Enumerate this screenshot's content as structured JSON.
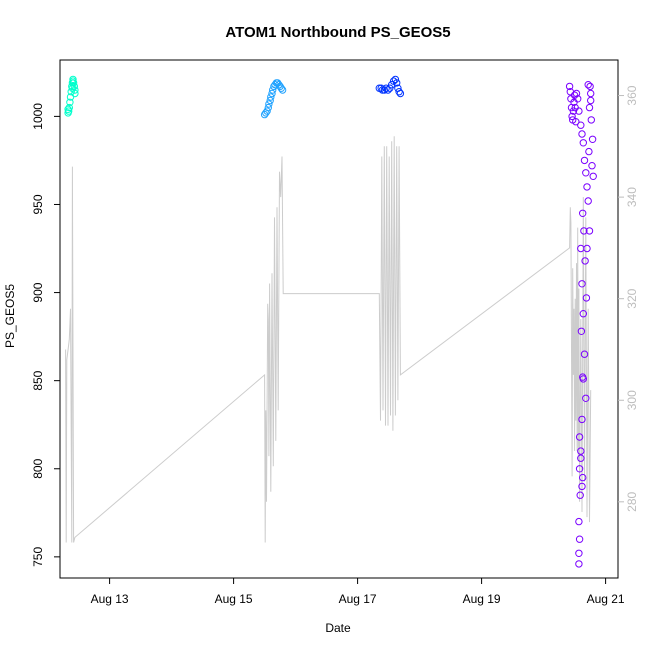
{
  "chart_data": {
    "type": "scatter",
    "title": "ATOM1 Northbound PS_GEOS5",
    "xlabel": "Date",
    "ylabel": "PS_GEOS5",
    "xlim": [
      12.2,
      21.2
    ],
    "ylim": [
      738,
      1032
    ],
    "y2lim": [
      265,
      367
    ],
    "x_ticks": [
      {
        "v": 13,
        "label": "Aug 13"
      },
      {
        "v": 15,
        "label": "Aug 15"
      },
      {
        "v": 17,
        "label": "Aug 17"
      },
      {
        "v": 19,
        "label": "Aug 19"
      },
      {
        "v": 21,
        "label": "Aug 21"
      }
    ],
    "y_ticks": [
      750,
      800,
      850,
      900,
      950,
      1000
    ],
    "y2_ticks": [
      280,
      300,
      320,
      340,
      360
    ],
    "grid": false,
    "colors": {
      "series1": "#00ffcc",
      "series2": "#1fa2ff",
      "series3": "#0033ff",
      "series4": "#7a00ff",
      "line": "#cccccc",
      "right_axis": "#bdbdbd"
    },
    "series": [
      {
        "color": "#00ffcc",
        "points": [
          [
            12.33,
            1002
          ],
          [
            12.33,
            1004
          ],
          [
            12.34,
            1003
          ],
          [
            12.35,
            1005
          ],
          [
            12.36,
            1008
          ],
          [
            12.37,
            1011
          ],
          [
            12.38,
            1014
          ],
          [
            12.39,
            1017
          ],
          [
            12.4,
            1019
          ],
          [
            12.41,
            1020
          ],
          [
            12.42,
            1019
          ],
          [
            12.43,
            1017
          ],
          [
            12.44,
            1015
          ],
          [
            12.44,
            1013
          ],
          [
            12.4,
            1016
          ],
          [
            12.41,
            1021
          ]
        ]
      },
      {
        "color": "#1fa2ff",
        "points": [
          [
            15.5,
            1001
          ],
          [
            15.52,
            1002
          ],
          [
            15.54,
            1003
          ],
          [
            15.56,
            1005
          ],
          [
            15.57,
            1007
          ],
          [
            15.59,
            1009
          ],
          [
            15.6,
            1011
          ],
          [
            15.62,
            1013
          ],
          [
            15.63,
            1015
          ],
          [
            15.65,
            1017
          ],
          [
            15.67,
            1018
          ],
          [
            15.69,
            1019
          ],
          [
            15.71,
            1019
          ],
          [
            15.73,
            1018
          ],
          [
            15.75,
            1017
          ],
          [
            15.77,
            1016
          ],
          [
            15.79,
            1015
          ]
        ]
      },
      {
        "color": "#0033ff",
        "points": [
          [
            17.35,
            1016
          ],
          [
            17.38,
            1016
          ],
          [
            17.4,
            1015
          ],
          [
            17.43,
            1015
          ],
          [
            17.46,
            1016
          ],
          [
            17.49,
            1015
          ],
          [
            17.52,
            1016
          ],
          [
            17.55,
            1018
          ],
          [
            17.58,
            1020
          ],
          [
            17.61,
            1021
          ],
          [
            17.63,
            1019
          ],
          [
            17.65,
            1016
          ],
          [
            17.67,
            1014
          ],
          [
            17.69,
            1013
          ]
        ]
      },
      {
        "color": "#7a00ff",
        "points": [
          [
            20.42,
            1017
          ],
          [
            20.43,
            1014
          ],
          [
            20.44,
            1010
          ],
          [
            20.45,
            1005
          ],
          [
            20.46,
            1000
          ],
          [
            20.47,
            998
          ],
          [
            20.48,
            1003
          ],
          [
            20.49,
            1008
          ],
          [
            20.5,
            1012
          ],
          [
            20.51,
            1005
          ],
          [
            20.52,
            997
          ],
          [
            20.53,
            1013
          ],
          [
            20.55,
            1010
          ],
          [
            20.57,
            1003
          ],
          [
            20.6,
            995
          ],
          [
            20.62,
            990
          ],
          [
            20.64,
            985
          ],
          [
            20.66,
            975
          ],
          [
            20.68,
            968
          ],
          [
            20.7,
            960
          ],
          [
            20.72,
            952
          ],
          [
            20.63,
            945
          ],
          [
            20.65,
            935
          ],
          [
            20.6,
            925
          ],
          [
            20.67,
            918
          ],
          [
            20.62,
            905
          ],
          [
            20.69,
            897
          ],
          [
            20.64,
            888
          ],
          [
            20.61,
            878
          ],
          [
            20.66,
            865
          ],
          [
            20.63,
            852
          ],
          [
            20.68,
            840
          ],
          [
            20.62,
            828
          ],
          [
            20.58,
            818
          ],
          [
            20.6,
            806
          ],
          [
            20.63,
            795
          ],
          [
            20.59,
            785
          ],
          [
            20.62,
            790
          ],
          [
            20.57,
            770
          ],
          [
            20.58,
            760
          ],
          [
            20.57,
            752
          ],
          [
            20.57,
            746
          ],
          [
            20.58,
            800
          ],
          [
            20.6,
            810
          ],
          [
            20.64,
            851
          ],
          [
            20.7,
            925
          ],
          [
            20.75,
            1017
          ],
          [
            20.76,
            1013
          ],
          [
            20.74,
            1005
          ],
          [
            20.77,
            998
          ],
          [
            20.79,
            987
          ],
          [
            20.78,
            972
          ],
          [
            20.8,
            966
          ],
          [
            20.72,
            1018
          ],
          [
            20.76,
            1009
          ],
          [
            20.73,
            980
          ],
          [
            20.74,
            935
          ]
        ]
      }
    ],
    "line_series": {
      "axis": "right",
      "color": "#cccccc",
      "points": [
        [
          12.29,
          310
        ],
        [
          12.3,
          272
        ],
        [
          12.31,
          308
        ],
        [
          12.33,
          310
        ],
        [
          12.35,
          312
        ],
        [
          12.37,
          318
        ],
        [
          12.39,
          272
        ],
        [
          12.4,
          346
        ],
        [
          12.42,
          272
        ],
        [
          12.44,
          273
        ],
        [
          15.5,
          305
        ],
        [
          15.51,
          272
        ],
        [
          15.52,
          298
        ],
        [
          15.53,
          280
        ],
        [
          15.55,
          319
        ],
        [
          15.56,
          316
        ],
        [
          15.57,
          289
        ],
        [
          15.58,
          323
        ],
        [
          15.6,
          282
        ],
        [
          15.62,
          325
        ],
        [
          15.64,
          287
        ],
        [
          15.66,
          336
        ],
        [
          15.68,
          292
        ],
        [
          15.7,
          338
        ],
        [
          15.72,
          298
        ],
        [
          15.74,
          345
        ],
        [
          15.76,
          340
        ],
        [
          15.78,
          348
        ],
        [
          15.8,
          321
        ],
        [
          17.35,
          321
        ],
        [
          17.37,
          296
        ],
        [
          17.39,
          348
        ],
        [
          17.41,
          298
        ],
        [
          17.43,
          350
        ],
        [
          17.45,
          295
        ],
        [
          17.47,
          350
        ],
        [
          17.49,
          295
        ],
        [
          17.51,
          348
        ],
        [
          17.53,
          297
        ],
        [
          17.55,
          351
        ],
        [
          17.57,
          294
        ],
        [
          17.59,
          352
        ],
        [
          17.61,
          297
        ],
        [
          17.63,
          350
        ],
        [
          17.65,
          300
        ],
        [
          17.67,
          350
        ],
        [
          17.69,
          305
        ],
        [
          20.42,
          330
        ],
        [
          20.43,
          338
        ],
        [
          20.44,
          335
        ],
        [
          20.46,
          285
        ],
        [
          20.47,
          326
        ],
        [
          20.48,
          305
        ],
        [
          20.49,
          318
        ],
        [
          20.5,
          290
        ],
        [
          20.51,
          320
        ],
        [
          20.52,
          296
        ],
        [
          20.53,
          327
        ],
        [
          20.54,
          290
        ],
        [
          20.55,
          334
        ],
        [
          20.56,
          288
        ],
        [
          20.57,
          322
        ],
        [
          20.58,
          280
        ],
        [
          20.6,
          316
        ],
        [
          20.62,
          278
        ],
        [
          20.64,
          340
        ],
        [
          20.66,
          284
        ],
        [
          20.68,
          336
        ],
        [
          20.7,
          277
        ],
        [
          20.72,
          318
        ],
        [
          20.74,
          276
        ],
        [
          20.76,
          302
        ]
      ]
    }
  }
}
